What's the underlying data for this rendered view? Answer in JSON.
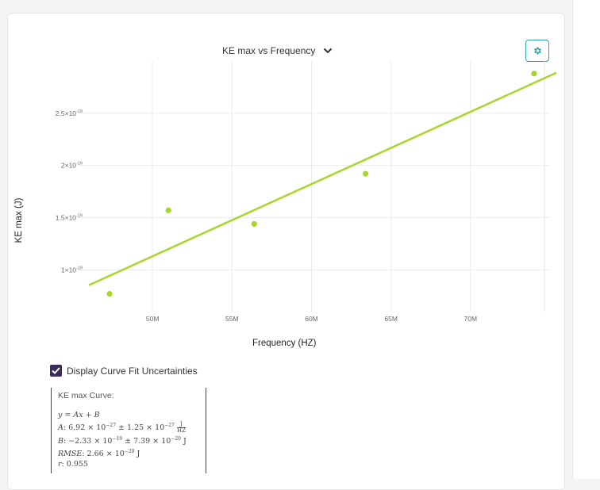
{
  "chart_selector": {
    "title": "KE max vs Frequency"
  },
  "chart_data": {
    "type": "scatter",
    "xlabel": "Frequency (HZ)",
    "ylabel": "KE max (J)",
    "x_tick_labels": [
      "50M",
      "55M",
      "60M",
      "65M",
      "70M"
    ],
    "x_ticks": [
      50000000,
      55000000,
      60000000,
      65000000,
      70000000
    ],
    "y_tick_labels": [
      "1×10",
      "1.5×10",
      "2×10",
      "2.5×10"
    ],
    "y_tick_exponent": "-19",
    "y_ticks": [
      1e-19,
      1.5e-19,
      2e-19,
      2.5e-19
    ],
    "xlim": [
      45300000,
      75000000
    ],
    "ylim": [
      6e-20,
      3e-19
    ],
    "series": [
      {
        "points": [
          {
            "x": 47300000,
            "y": 7.7e-20
          },
          {
            "x": 51000000,
            "y": 1.57e-19
          },
          {
            "x": 56400000,
            "y": 1.44e-19
          },
          {
            "x": 63400000,
            "y": 1.92e-19
          },
          {
            "x": 74000000,
            "y": 2.88e-19
          }
        ]
      }
    ],
    "fit_line": {
      "x_start": 46000000,
      "x_end": 75400000,
      "A": 6.92e-27,
      "B": -2.33e-19
    },
    "colors": {
      "points": "#a6d62a",
      "fit": "#a6d62a",
      "grid": "#ececec"
    },
    "grid": true
  },
  "options": {
    "display_uncertainties_label": "Display Curve Fit Uncertainties",
    "display_uncertainties_checked": true
  },
  "fit_results": {
    "title": "KE max Curve:",
    "equation": "y = Ax + B",
    "A_label": "A",
    "A_value": ": 6.92 × 10",
    "A_exp": "−27",
    "A_unc": " ± 1.25 × 10",
    "A_unc_exp": "−27",
    "A_unit_num": "J",
    "A_unit_den": "HZ",
    "B_label": "B",
    "B_value": ": −2.33 × 10",
    "B_exp": "−19",
    "B_unc": " ± 7.39 × 10",
    "B_unc_exp": "−20",
    "B_unit": " J",
    "RMSE_label": "RMSE",
    "RMSE_value": ": 2.66 × 10",
    "RMSE_exp": "−20",
    "RMSE_unit": " J",
    "r_label": "r",
    "r_value": ": 0.955"
  }
}
